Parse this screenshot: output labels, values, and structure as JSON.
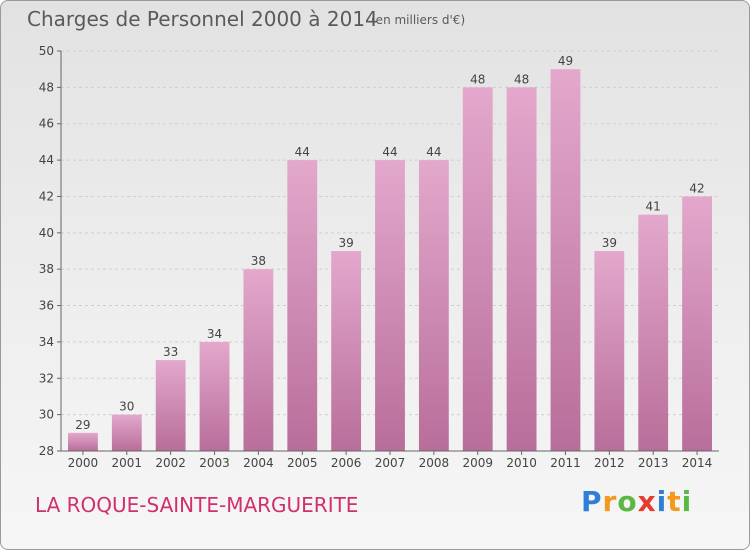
{
  "header": {
    "title": "Charges de Personnel 2000 à 2014",
    "unit": "(en milliers d'€)"
  },
  "footer": {
    "commune": "LA ROQUE-SAINTE-MARGUERITE",
    "logo_letters": [
      "P",
      "r",
      "o",
      "x",
      "i",
      "t",
      "i"
    ],
    "logo_colors": [
      "#2f7fd6",
      "#f39a1c",
      "#5bb845",
      "#e63b2e",
      "#2f7fd6",
      "#f39a1c",
      "#5bb845"
    ]
  },
  "colors": {
    "bar_top": "#e3a8cc",
    "bar_bottom": "#b86e9a",
    "axis": "#666666",
    "grid": "#cfcfcf",
    "label": "#444444"
  },
  "chart_data": {
    "type": "bar",
    "categories": [
      "2000",
      "2001",
      "2002",
      "2003",
      "2004",
      "2005",
      "2006",
      "2007",
      "2008",
      "2009",
      "2010",
      "2011",
      "2012",
      "2013",
      "2014"
    ],
    "values": [
      29,
      30,
      33,
      34,
      38,
      44,
      39,
      44,
      44,
      48,
      48,
      49,
      39,
      41,
      42
    ],
    "ylim": [
      28,
      50
    ],
    "yticks": [
      28,
      30,
      32,
      34,
      36,
      38,
      40,
      42,
      44,
      46,
      48,
      50
    ],
    "grid": true,
    "title": "Charges de Personnel 2000 à 2014",
    "xlabel": "",
    "ylabel": ""
  }
}
